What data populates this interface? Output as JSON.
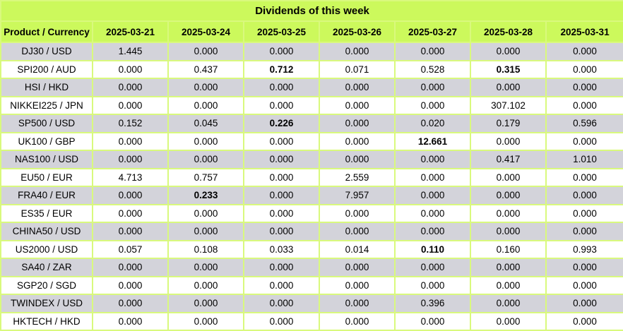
{
  "title": "Dividends of this week",
  "colors": {
    "header_bg": "#ccf95c",
    "grid_line": "#d9f97d",
    "row_alt_bg": "#d3d3da",
    "row_bg": "#ffffff",
    "text": "#000000"
  },
  "chart_data": {
    "type": "table",
    "title": "Dividends of this week",
    "columns": [
      "Product / Currency",
      "2025-03-21",
      "2025-03-24",
      "2025-03-25",
      "2025-03-26",
      "2025-03-27",
      "2025-03-28",
      "2025-03-31"
    ],
    "rows": [
      {
        "product": "DJ30 / USD",
        "values": [
          "1.445",
          "0.000",
          "0.000",
          "0.000",
          "0.000",
          "0.000",
          "0.000"
        ],
        "bold": []
      },
      {
        "product": "SPI200 / AUD",
        "values": [
          "0.000",
          "0.437",
          "0.712",
          "0.071",
          "0.528",
          "0.315",
          "0.000"
        ],
        "bold": [
          2,
          5
        ]
      },
      {
        "product": "HSI / HKD",
        "values": [
          "0.000",
          "0.000",
          "0.000",
          "0.000",
          "0.000",
          "0.000",
          "0.000"
        ],
        "bold": []
      },
      {
        "product": "NIKKEI225 / JPN",
        "values": [
          "0.000",
          "0.000",
          "0.000",
          "0.000",
          "0.000",
          "307.102",
          "0.000"
        ],
        "bold": []
      },
      {
        "product": "SP500 / USD",
        "values": [
          "0.152",
          "0.045",
          "0.226",
          "0.000",
          "0.020",
          "0.179",
          "0.596"
        ],
        "bold": [
          2
        ]
      },
      {
        "product": "UK100 / GBP",
        "values": [
          "0.000",
          "0.000",
          "0.000",
          "0.000",
          "12.661",
          "0.000",
          "0.000"
        ],
        "bold": [
          4
        ]
      },
      {
        "product": "NAS100 / USD",
        "values": [
          "0.000",
          "0.000",
          "0.000",
          "0.000",
          "0.000",
          "0.417",
          "1.010"
        ],
        "bold": []
      },
      {
        "product": "EU50 / EUR",
        "values": [
          "4.713",
          "0.757",
          "0.000",
          "2.559",
          "0.000",
          "0.000",
          "0.000"
        ],
        "bold": []
      },
      {
        "product": "FRA40 / EUR",
        "values": [
          "0.000",
          "0.233",
          "0.000",
          "7.957",
          "0.000",
          "0.000",
          "0.000"
        ],
        "bold": [
          1
        ]
      },
      {
        "product": "ES35 / EUR",
        "values": [
          "0.000",
          "0.000",
          "0.000",
          "0.000",
          "0.000",
          "0.000",
          "0.000"
        ],
        "bold": []
      },
      {
        "product": "CHINA50 / USD",
        "values": [
          "0.000",
          "0.000",
          "0.000",
          "0.000",
          "0.000",
          "0.000",
          "0.000"
        ],
        "bold": []
      },
      {
        "product": "US2000 / USD",
        "values": [
          "0.057",
          "0.108",
          "0.033",
          "0.014",
          "0.110",
          "0.160",
          "0.993"
        ],
        "bold": [
          4
        ]
      },
      {
        "product": "SA40 / ZAR",
        "values": [
          "0.000",
          "0.000",
          "0.000",
          "0.000",
          "0.000",
          "0.000",
          "0.000"
        ],
        "bold": []
      },
      {
        "product": "SGP20 / SGD",
        "values": [
          "0.000",
          "0.000",
          "0.000",
          "0.000",
          "0.000",
          "0.000",
          "0.000"
        ],
        "bold": []
      },
      {
        "product": "TWINDEX / USD",
        "values": [
          "0.000",
          "0.000",
          "0.000",
          "0.000",
          "0.396",
          "0.000",
          "0.000"
        ],
        "bold": []
      },
      {
        "product": "HKTECH / HKD",
        "values": [
          "0.000",
          "0.000",
          "0.000",
          "0.000",
          "0.000",
          "0.000",
          "0.000"
        ],
        "bold": []
      }
    ]
  }
}
